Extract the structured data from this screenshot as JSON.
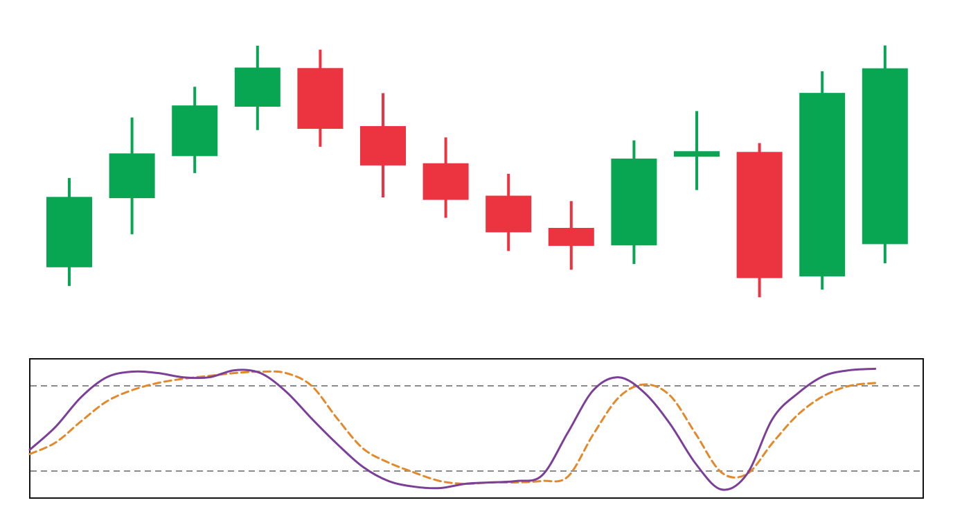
{
  "chart_data": [
    {
      "type": "candlestick",
      "title": "",
      "xlabel": "",
      "ylabel": "",
      "grid": false,
      "legend": "none",
      "ylim": [
        0,
        100
      ],
      "colors": {
        "up": "#08a552",
        "down": "#ec3440"
      },
      "candles": [
        {
          "open": 14.7,
          "close": 43.3,
          "high": 51.0,
          "low": 7.1,
          "direction": "up"
        },
        {
          "open": 42.8,
          "close": 61.0,
          "high": 75.6,
          "low": 28.1,
          "direction": "up"
        },
        {
          "open": 59.9,
          "close": 80.5,
          "high": 88.1,
          "low": 53.0,
          "direction": "up"
        },
        {
          "open": 80.0,
          "close": 95.9,
          "high": 104.8,
          "low": 70.5,
          "direction": "up"
        },
        {
          "open": 95.7,
          "close": 71.0,
          "high": 103.2,
          "low": 63.7,
          "direction": "down"
        },
        {
          "open": 72.1,
          "close": 56.1,
          "high": 85.5,
          "low": 43.1,
          "direction": "down"
        },
        {
          "open": 57.0,
          "close": 42.1,
          "high": 67.5,
          "low": 34.8,
          "direction": "down"
        },
        {
          "open": 43.8,
          "close": 28.9,
          "high": 52.7,
          "low": 21.3,
          "direction": "down"
        },
        {
          "open": 30.7,
          "close": 23.4,
          "high": 41.6,
          "low": 13.7,
          "direction": "down"
        },
        {
          "open": 23.6,
          "close": 58.9,
          "high": 66.3,
          "low": 16.0,
          "direction": "up"
        },
        {
          "open": 59.7,
          "close": 61.9,
          "high": 78.2,
          "low": 46.1,
          "direction": "up"
        },
        {
          "open": 61.6,
          "close": 10.3,
          "high": 65.2,
          "low": 2.5,
          "direction": "down"
        },
        {
          "open": 11.0,
          "close": 85.6,
          "high": 94.4,
          "low": 5.6,
          "direction": "up"
        },
        {
          "open": 24.1,
          "close": 95.6,
          "high": 104.9,
          "low": 16.3,
          "direction": "up"
        }
      ]
    },
    {
      "type": "line",
      "title": "",
      "xlabel": "",
      "ylabel": "",
      "grid": false,
      "legend": "none",
      "xlim": [
        0,
        100
      ],
      "ylim": [
        0,
        100
      ],
      "reference_lines": [
        80,
        20
      ],
      "series": [
        {
          "style": "solid",
          "color": "#7b3f98",
          "x": [
            0,
            3,
            6,
            9,
            12,
            15,
            18,
            21,
            24,
            27,
            30,
            33,
            36,
            39,
            42,
            45,
            48,
            51,
            54,
            57,
            60,
            63,
            66,
            69,
            72,
            75,
            78,
            81,
            84,
            87,
            90,
            93,
            96,
            99
          ],
          "y": [
            35,
            51,
            72,
            86,
            90,
            89,
            86,
            86,
            91,
            89,
            76,
            57,
            39,
            23,
            13,
            9,
            8,
            11,
            12,
            13,
            17,
            47,
            77,
            86,
            75,
            53,
            25,
            7,
            18,
            57,
            75,
            87,
            91,
            92
          ]
        },
        {
          "style": "dashed",
          "color": "#e2892b",
          "x": [
            0,
            3,
            6,
            9,
            12,
            15,
            18,
            21,
            24,
            27,
            30,
            33,
            36,
            39,
            42,
            45,
            48,
            51,
            54,
            57,
            60,
            63,
            66,
            69,
            72,
            75,
            78,
            81,
            84,
            87,
            90,
            93,
            96,
            99
          ],
          "y": [
            32,
            40,
            55,
            69,
            77,
            82,
            85,
            87,
            89,
            90,
            89,
            80,
            57,
            36,
            26,
            19,
            13,
            11,
            12,
            12,
            13,
            16,
            46,
            72,
            81,
            73,
            46,
            19,
            18,
            40,
            60,
            73,
            80,
            82
          ]
        }
      ]
    }
  ]
}
